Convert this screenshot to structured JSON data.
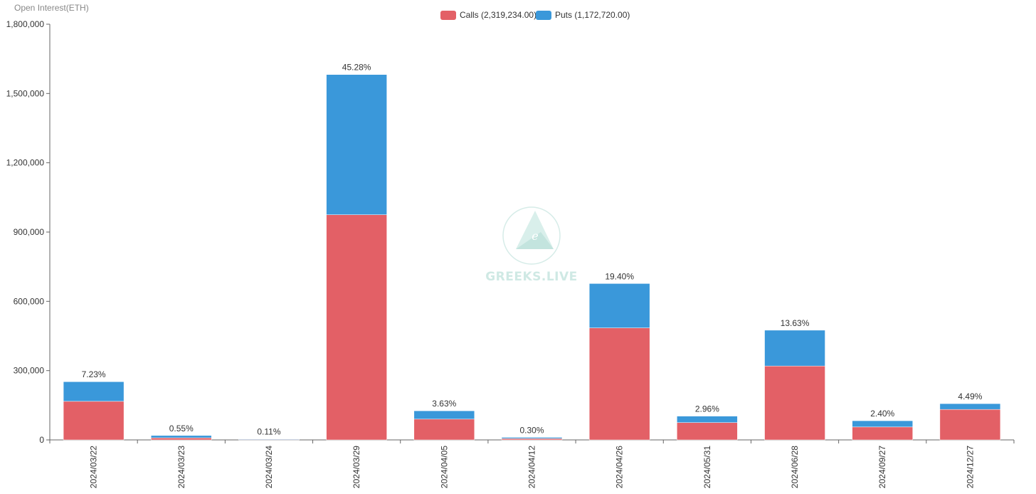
{
  "chart_data": {
    "type": "bar",
    "stacked": true,
    "ylabel": "Open Interest(ETH)",
    "ylim": [
      0,
      1800000
    ],
    "yticks": [
      0,
      300000,
      600000,
      900000,
      1200000,
      1500000,
      1800000
    ],
    "ytick_labels": [
      "0",
      "300,000",
      "600,000",
      "900,000",
      "1,200,000",
      "1,500,000",
      "1,800,000"
    ],
    "categories": [
      "2024/03/22",
      "2024/03/23",
      "2024/03/24",
      "2024/03/29",
      "2024/04/05",
      "2024/04/12",
      "2024/04/26",
      "2024/05/31",
      "2024/06/28",
      "2024/09/27",
      "2024/12/27"
    ],
    "series": [
      {
        "name": "Calls",
        "legend_label": "Calls (2,319,234.00)",
        "color": "#e36066",
        "values": [
          167000,
          9000,
          2500,
          975000,
          90000,
          6000,
          485000,
          75000,
          320000,
          56000,
          132000
        ]
      },
      {
        "name": "Puts",
        "legend_label": "Puts (1,172,720.00)",
        "color": "#3a98da",
        "values": [
          85000,
          10000,
          1500,
          607000,
          36000,
          5000,
          192000,
          28000,
          155000,
          27000,
          25000
        ]
      }
    ],
    "bar_labels": [
      "7.23%",
      "0.55%",
      "0.11%",
      "45.28%",
      "3.63%",
      "0.30%",
      "19.40%",
      "2.96%",
      "13.63%",
      "2.40%",
      "4.49%"
    ],
    "legend_position": "top-center",
    "grid": false
  },
  "watermark": {
    "text": "GREEKS.LIVE",
    "color": "#cfe9e4"
  }
}
